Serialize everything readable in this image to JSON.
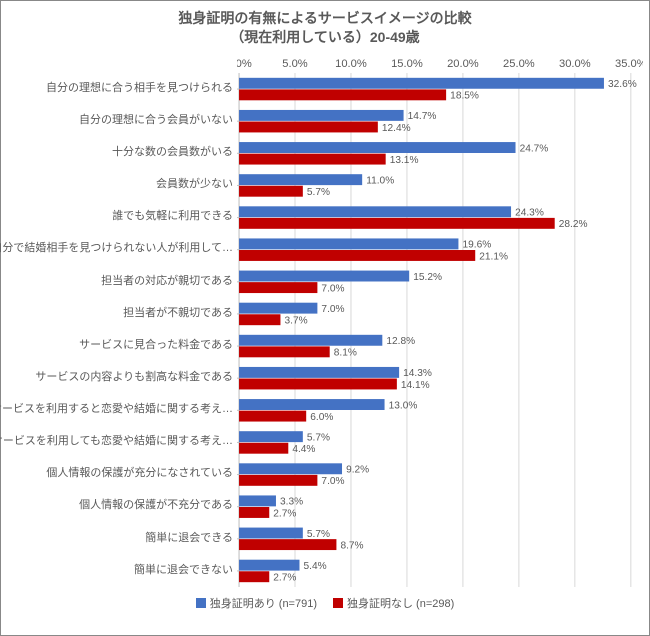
{
  "chart": {
    "type": "grouped-horizontal-bar",
    "title_line1": "独身証明の有無によるサービスイメージの比較",
    "title_line2": "（現在利用している）20-49歳",
    "title_fontsize": 14,
    "title_color": "#595959",
    "background_color": "#ffffff",
    "plot_bg": "#ffffff",
    "grid_color": "#d9d9d9",
    "axis_color": "#bfbfbf",
    "label_fontsize": 11,
    "label_color": "#595959",
    "value_label_fontsize": 10,
    "value_label_color": "#595959",
    "xaxis": {
      "min": 0.0,
      "max": 35.0,
      "tick_step": 5.0,
      "fmt_suffix": "%",
      "fmt_decimals": 1,
      "position": "top"
    },
    "categories": [
      "自分の理想に合う相手を見つけられる",
      "自分の理想に合う会員がいない",
      "十分な数の会員数がいる",
      "会員数が少ない",
      "誰でも気軽に利用できる",
      "自分で結婚相手を見つけられない人が利用して…",
      "担当者の対応が親切である",
      "担当者が不親切である",
      "サービスに見合った料金である",
      "サービスの内容よりも割高な料金である",
      "サービスを利用すると恋愛や結婚に関する考え…",
      "サービスを利用しても恋愛や結婚に関する考え…",
      "個人情報の保護が充分になされている",
      "個人情報の保護が不充分である",
      "簡単に退会できる",
      "簡単に退会できない"
    ],
    "series": [
      {
        "name": "独身証明あり (n=791)",
        "color": "#4472c4",
        "values": [
          32.6,
          14.7,
          24.7,
          11.0,
          24.3,
          19.6,
          15.2,
          7.0,
          12.8,
          14.3,
          13.0,
          5.7,
          9.2,
          3.3,
          5.7,
          5.4
        ]
      },
      {
        "name": "独身証明なし (n=298)",
        "color": "#c00000",
        "values": [
          18.5,
          12.4,
          13.1,
          5.7,
          28.2,
          21.1,
          7.0,
          3.7,
          8.1,
          14.1,
          6.0,
          4.4,
          7.0,
          2.7,
          8.7,
          2.7
        ]
      }
    ],
    "bar_group_height_ratio": 0.7,
    "bar_gap_ratio": 0.02,
    "legend_position": "bottom"
  }
}
